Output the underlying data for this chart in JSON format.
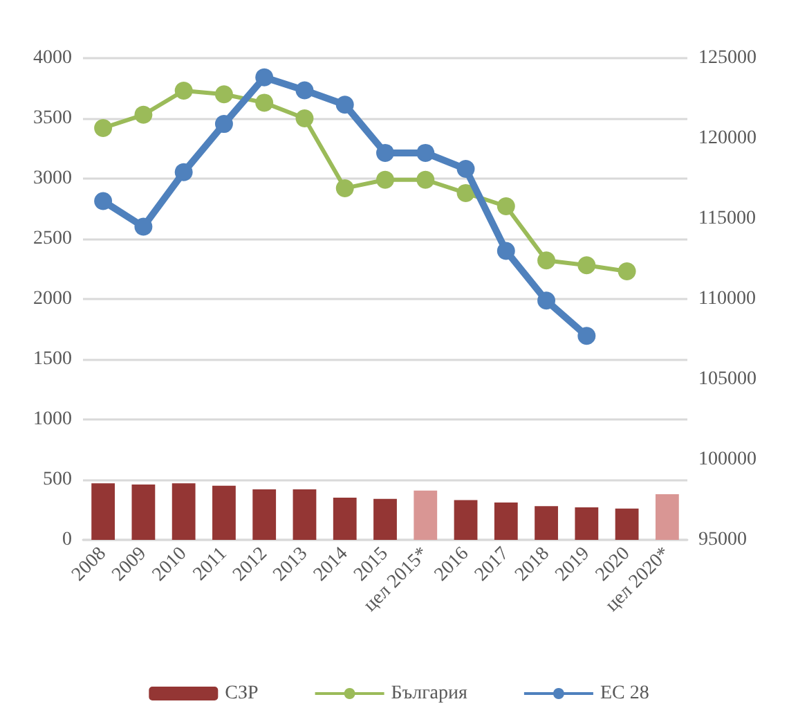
{
  "chart_data": {
    "type": "bar",
    "categories": [
      "2008",
      "2009",
      "2010",
      "2011",
      "2012",
      "2013",
      "2014",
      "2015",
      "цел 2015*",
      "2016",
      "2017",
      "2018",
      "2019",
      "2020",
      "цел 2020*"
    ],
    "series": [
      {
        "name": "СЗР",
        "color": "#943634",
        "colors": [
          "#943634",
          "#943634",
          "#943634",
          "#943634",
          "#943634",
          "#943634",
          "#943634",
          "#943634",
          "#d99694",
          "#943634",
          "#943634",
          "#943634",
          "#943634",
          "#943634",
          "#d99694"
        ],
        "values": [
          470,
          460,
          470,
          450,
          420,
          420,
          350,
          340,
          410,
          330,
          310,
          280,
          270,
          260,
          380
        ]
      },
      {
        "name": "България",
        "type": "line",
        "color": "#9bbb59",
        "values": [
          3420,
          3530,
          3730,
          3700,
          3630,
          3500,
          2920,
          2990,
          2990,
          2880,
          2770,
          2320,
          2280,
          2230,
          null
        ]
      },
      {
        "name": "ЕС 28",
        "type": "line",
        "axis": "y2",
        "color": "#4f81bd",
        "values": [
          116100,
          114500,
          117900,
          120900,
          123800,
          123000,
          122100,
          119100,
          119100,
          118100,
          113000,
          109900,
          107700,
          null,
          null
        ]
      }
    ],
    "ylim": [
      0,
      4000
    ],
    "yticks": [
      0,
      500,
      1000,
      1500,
      2000,
      2500,
      3000,
      3500,
      4000
    ],
    "y2lim": [
      95000,
      125000
    ],
    "y2ticks": [
      95000,
      100000,
      105000,
      110000,
      115000,
      120000,
      125000
    ],
    "grid": "y",
    "legend": "bottom",
    "marker": "circle"
  }
}
